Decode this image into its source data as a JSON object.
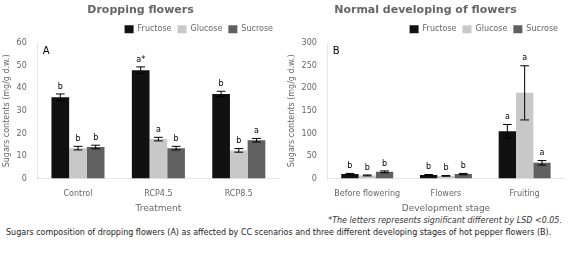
{
  "chart_data": [
    {
      "type": "bar",
      "title": "Dropping flowers",
      "xlabel": "Treatment",
      "ylabel": "Sugars contents (mg/g d.w.)",
      "annotations": [
        "A"
      ],
      "categories": [
        "Control",
        "RCP4.5",
        "RCP8.5"
      ],
      "series": [
        {
          "name": "Fructose",
          "color": "#111111",
          "values": [
            36.0,
            48.0,
            37.5
          ],
          "errors": [
            1.5,
            1.5,
            1.2
          ],
          "letters": [
            "b",
            "a*",
            "b"
          ]
        },
        {
          "name": "Glucose",
          "color": "#c8c8c8",
          "values": [
            13.5,
            17.5,
            12.5
          ],
          "errors": [
            0.8,
            0.8,
            0.8
          ],
          "letters": [
            "b",
            "a",
            "b"
          ]
        },
        {
          "name": "Sucrose",
          "color": "#606060",
          "values": [
            14.0,
            13.5,
            17.0
          ],
          "errors": [
            0.8,
            0.8,
            0.8
          ],
          "letters": [
            "b",
            "b",
            "a"
          ]
        }
      ],
      "ylim": [
        0,
        60
      ],
      "yticks": [
        0,
        10,
        20,
        30,
        40,
        50,
        60
      ],
      "grid": false,
      "legend": "upper right"
    },
    {
      "type": "bar",
      "title": "Normal developing of flowers",
      "xlabel": "Development stage",
      "ylabel": "Sugars contents (mg/g d.w.)",
      "annotations": [
        "B",
        "*The letters represents significant different by LSD <0.05."
      ],
      "categories": [
        "Before flowering",
        "Flowers",
        "Fruiting"
      ],
      "series": [
        {
          "name": "Fructose",
          "color": "#111111",
          "values": [
            10.0,
            8.0,
            105.0
          ],
          "errors": [
            1.5,
            1.0,
            15.0
          ],
          "letters": [
            "b",
            "b",
            "a"
          ]
        },
        {
          "name": "Glucose",
          "color": "#c8c8c8",
          "values": [
            7.0,
            6.0,
            190.0
          ],
          "errors": [
            1.0,
            0.8,
            60.0
          ],
          "letters": [
            "b",
            "b",
            "a"
          ]
        },
        {
          "name": "Sucrose",
          "color": "#606060",
          "values": [
            15.0,
            10.0,
            35.0
          ],
          "errors": [
            2.0,
            1.5,
            5.0
          ],
          "letters": [
            "b",
            "b",
            "a"
          ]
        }
      ],
      "ylim": [
        0,
        300
      ],
      "yticks": [
        0,
        50,
        100,
        150,
        200,
        250,
        300
      ],
      "grid": false,
      "legend": "upper right"
    }
  ],
  "caption": "Sugars composition of dropping flowers (A) as affected by CC scenarios and three different developing stages of hot pepper flowers (B)."
}
